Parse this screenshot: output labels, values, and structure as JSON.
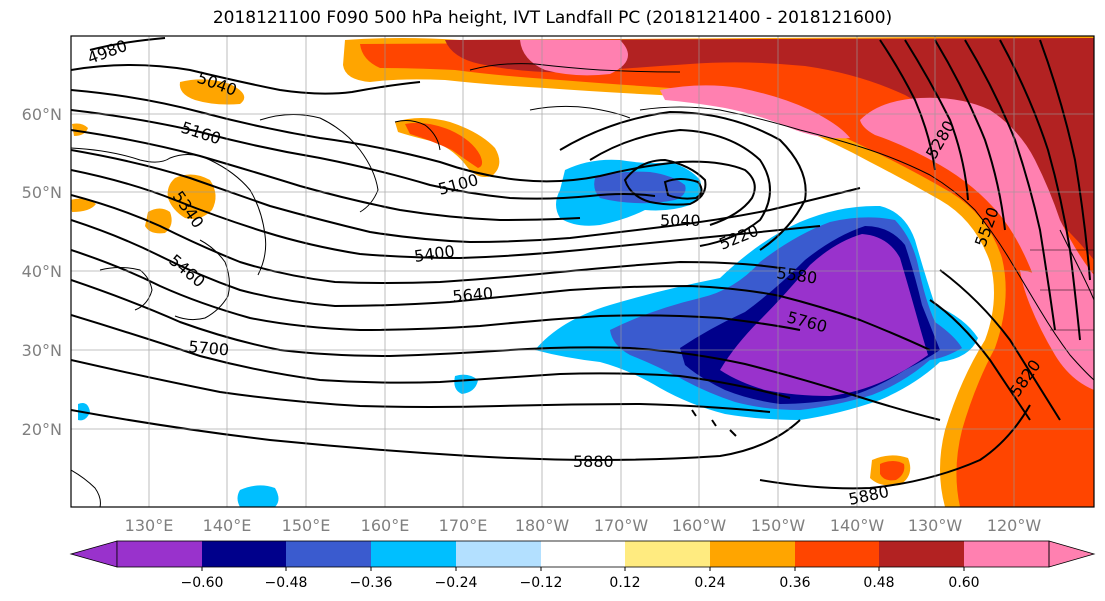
{
  "title": "2018121100 F090 500 hPa height, IVT Landfall PC (2018121400 - 2018121600)",
  "map": {
    "lon_ticks": [
      "130°E",
      "140°E",
      "150°E",
      "160°E",
      "170°E",
      "180°W",
      "170°W",
      "160°W",
      "150°W",
      "140°W",
      "130°W",
      "120°W"
    ],
    "lat_ticks": [
      "60°N",
      "50°N",
      "40°N",
      "30°N",
      "20°N"
    ],
    "contour_labels": [
      "4980",
      "5040",
      "5160",
      "5100",
      "5040",
      "5220",
      "5340",
      "5400",
      "5460",
      "5580",
      "5640",
      "5700",
      "5760",
      "5280",
      "5520",
      "5820",
      "5880",
      "5880"
    ],
    "colors": {
      "purple": "#9932cc",
      "navy": "#00008b",
      "royal": "#3a5bcf",
      "sky": "#00bfff",
      "lightblue": "#b3e0ff",
      "white": "#ffffff",
      "yellow": "#ffeb80",
      "orange": "#ffa500",
      "redorange": "#ff4500",
      "darkred": "#b22222",
      "pink": "#ff80b0"
    }
  },
  "colorbar": {
    "tick_labels": [
      "−0.60",
      "−0.48",
      "−0.36",
      "−0.24",
      "−0.12",
      "0.12",
      "0.24",
      "0.36",
      "0.48",
      "0.60"
    ],
    "colors": [
      "#9932cc",
      "#00008b",
      "#3a5bcf",
      "#00bfff",
      "#b3e0ff",
      "#ffffff",
      "#ffeb80",
      "#ffa500",
      "#ff4500",
      "#b22222",
      "#ff80b0"
    ]
  }
}
